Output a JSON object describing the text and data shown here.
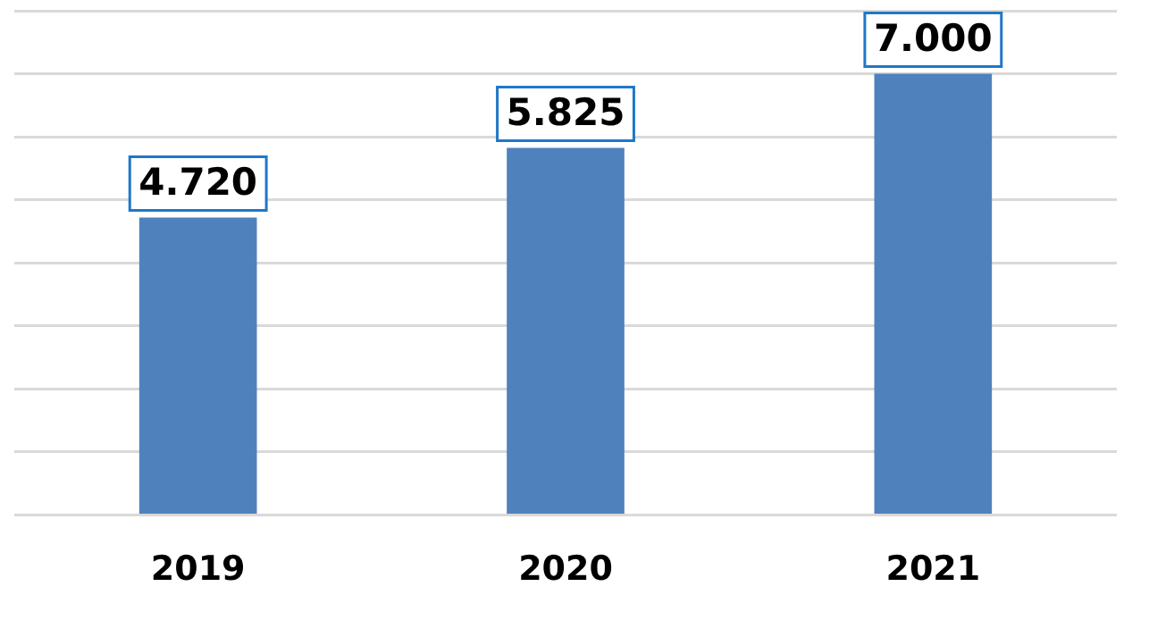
{
  "chart_data": {
    "type": "bar",
    "categories": [
      "2019",
      "2020",
      "2021"
    ],
    "values": [
      4.72,
      5.825,
      7.0
    ],
    "value_labels": [
      "4.720",
      "5.825",
      "7.000"
    ],
    "color": "#4f81bd",
    "ylim": [
      0,
      8
    ],
    "yticks": [
      {
        "value": 0,
        "label": null
      },
      {
        "value": 1,
        "label": null
      },
      {
        "value": 2,
        "label": null
      },
      {
        "value": 3,
        "label": null
      },
      {
        "value": 4,
        "label": null
      },
      {
        "value": 5,
        "label": null
      },
      {
        "value": 6,
        "label": null
      },
      {
        "value": 7,
        "label": null
      },
      {
        "value": 8,
        "label": null
      }
    ],
    "grid": "y",
    "tick_labels": "x",
    "legend": false
  }
}
